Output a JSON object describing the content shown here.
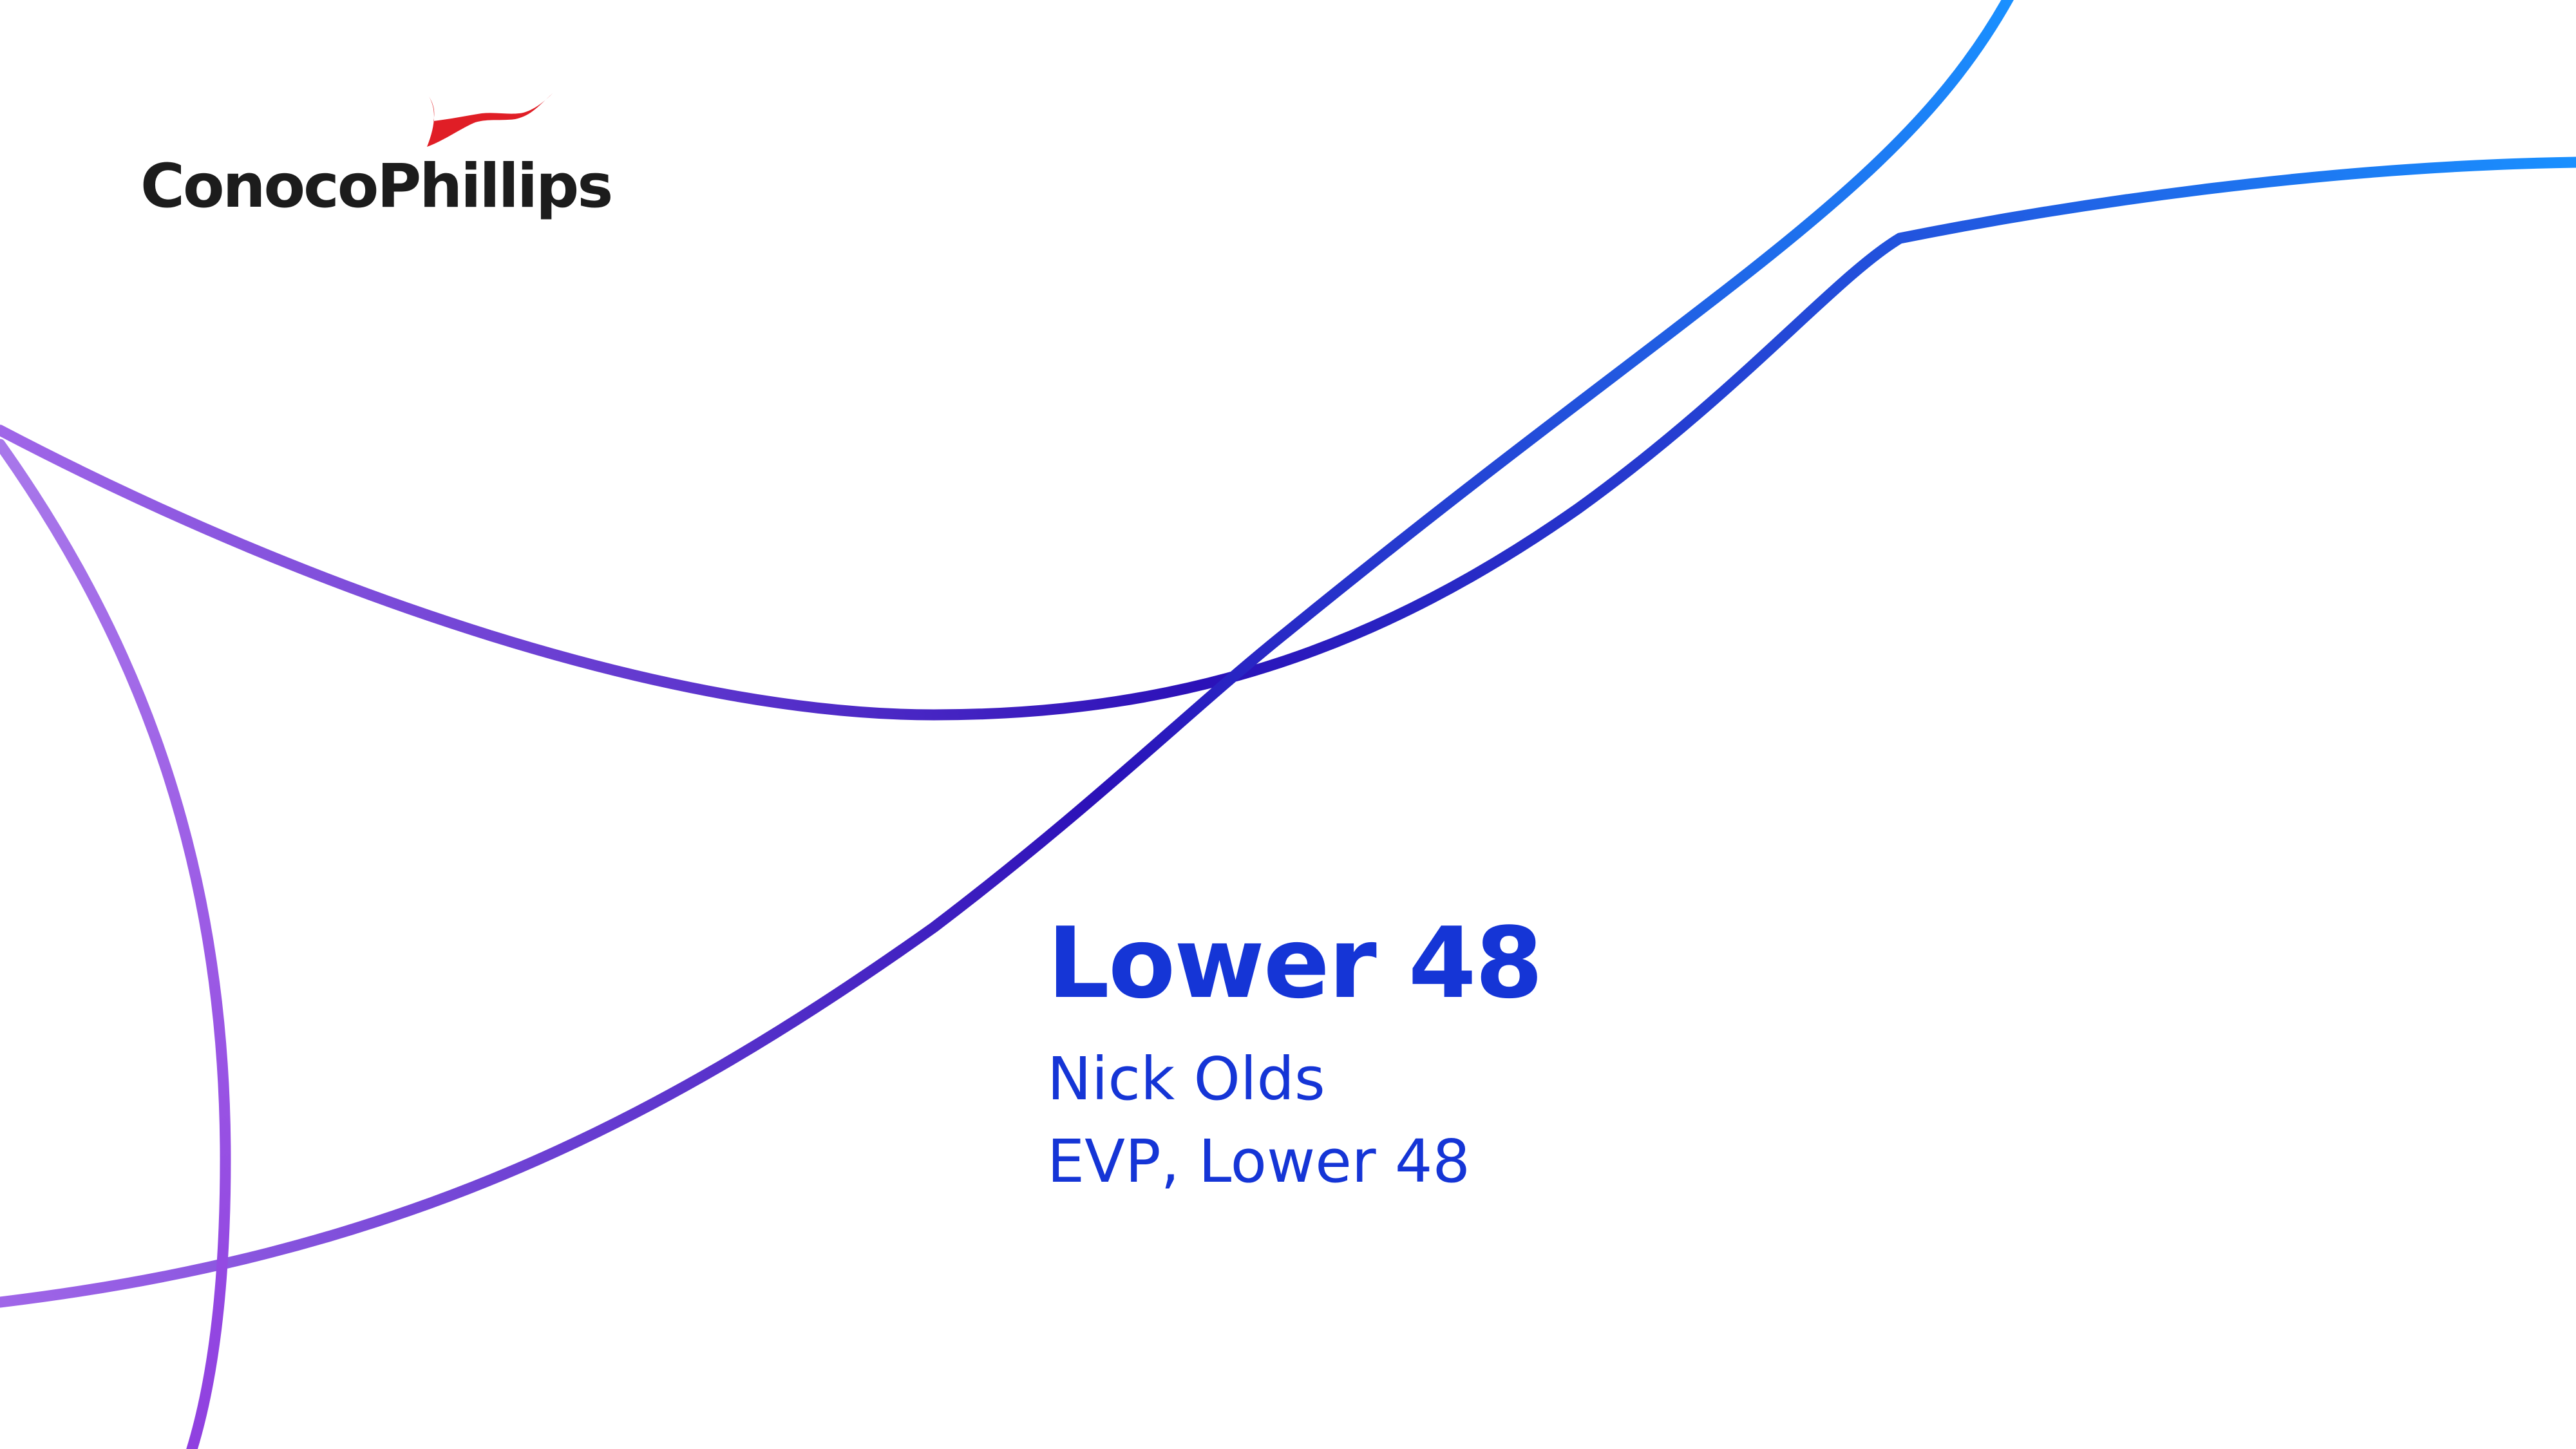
{
  "brand": {
    "name": "ConocoPhillips",
    "logo_icon": "red-ribbon-logo-icon",
    "logo_color": "#e01e26",
    "text_color": "#1c1c1c"
  },
  "slide": {
    "title": "Lower 48",
    "presenter_name": "Nick Olds",
    "presenter_role": "EVP, Lower 48",
    "text_color": "#1535d6",
    "background": "#ffffff"
  },
  "decoration": {
    "style": "gradient-swoosh-lines",
    "gradient_colors": [
      "#a066e8",
      "#2b11b8",
      "#1a90ff"
    ]
  }
}
